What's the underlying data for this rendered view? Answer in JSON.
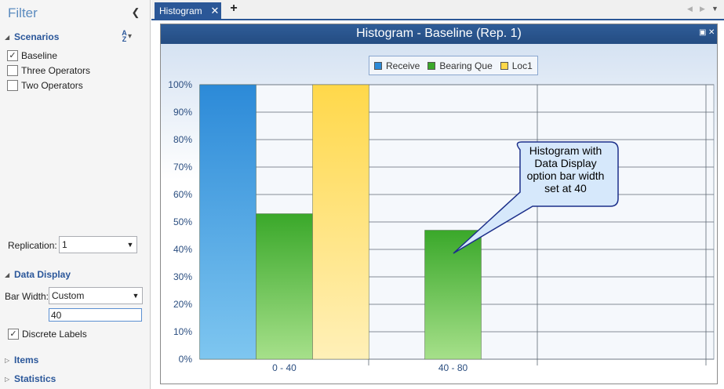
{
  "filter": {
    "title": "Filter",
    "scenarios_header": "Scenarios",
    "scenarios": [
      {
        "label": "Baseline",
        "checked": true
      },
      {
        "label": "Three Operators",
        "checked": false
      },
      {
        "label": "Two Operators",
        "checked": false
      }
    ],
    "replication_label": "Replication:",
    "replication_value": "1",
    "data_display_header": "Data Display",
    "bar_width_label": "Bar Width:",
    "bar_width_mode": "Custom",
    "bar_width_value": "40",
    "discrete_labels": {
      "label": "Discrete Labels",
      "checked": true
    },
    "items_header": "Items",
    "statistics_header": "Statistics"
  },
  "tabs": {
    "active_label": "Histogram",
    "new_tab_glyph": "+"
  },
  "chart_window": {
    "title": "Histogram - Baseline (Rep. 1)"
  },
  "callout": {
    "text": "Histogram with Data Display option bar width set at 40",
    "lines": [
      "Histogram with",
      "Data Display",
      "option bar width",
      "set at 40"
    ]
  },
  "chart_data": {
    "type": "bar",
    "title": "Histogram - Baseline (Rep. 1)",
    "categories": [
      "0 - 40",
      "40 - 80"
    ],
    "series": [
      {
        "name": "Receive",
        "values": [
          100,
          null
        ],
        "color": "#2c8ad8"
      },
      {
        "name": "Bearing Que",
        "values": [
          53,
          47
        ],
        "color": "#3aa82a"
      },
      {
        "name": "Loc1",
        "values": [
          100,
          null
        ],
        "color": "#ffd84a"
      }
    ],
    "y_ticks": [
      "0%",
      "10%",
      "20%",
      "30%",
      "40%",
      "50%",
      "60%",
      "70%",
      "80%",
      "90%",
      "100%"
    ],
    "ylim": [
      0,
      100
    ],
    "y_unit": "%",
    "extra_empty_bins": 1,
    "legend_position": "top-center",
    "grid": true
  }
}
